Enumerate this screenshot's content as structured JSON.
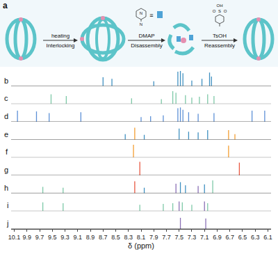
{
  "panel_a": {
    "label": "a",
    "dmap_atoms": [
      "N",
      "N"
    ],
    "equiv": "≡",
    "tsoh_atoms": [
      "OH",
      "O",
      "S",
      "O"
    ],
    "steps": [
      {
        "above": "heating",
        "below": "Interlocking"
      },
      {
        "above": "DMAP",
        "below": "Disassembly"
      },
      {
        "above": "TsOH",
        "below": "Reassembly"
      }
    ]
  },
  "chart_data": {
    "type": "bar",
    "x_label": "δ (ppm)",
    "xlim": [
      10.15,
      6.05
    ],
    "xticks": [
      10.1,
      9.9,
      9.7,
      9.5,
      9.3,
      9.1,
      8.9,
      8.7,
      8.5,
      8.3,
      8.1,
      7.9,
      7.7,
      7.5,
      7.3,
      7.1,
      6.9,
      6.7,
      6.5,
      6.3,
      6.1
    ],
    "ylim": [
      0,
      1
    ],
    "tick_labels": "x",
    "series": [
      {
        "name": "b",
        "color": "#3d8fc0",
        "x": [
          8.7,
          8.56,
          7.9,
          7.52,
          7.48,
          7.44,
          7.3,
          7.14,
          7.02,
          6.99
        ],
        "values": [
          0.55,
          0.45,
          0.3,
          0.9,
          0.95,
          0.8,
          0.35,
          0.45,
          0.85,
          0.6
        ]
      },
      {
        "name": "c",
        "color": "#7cc8a6",
        "x": [
          9.52,
          9.28,
          8.25,
          7.78,
          7.6,
          7.55,
          7.4,
          7.3,
          7.18,
          7.05,
          6.95
        ],
        "values": [
          0.6,
          0.5,
          0.35,
          0.3,
          0.8,
          0.7,
          0.55,
          0.4,
          0.45,
          0.6,
          0.5
        ]
      },
      {
        "name": "d",
        "color": "#5b8fd6",
        "x": [
          10.05,
          9.75,
          9.55,
          9.05,
          8.1,
          7.95,
          7.75,
          7.52,
          7.48,
          7.44,
          7.35,
          7.2,
          6.95,
          6.35,
          6.15
        ],
        "values": [
          0.7,
          0.65,
          0.55,
          0.6,
          0.3,
          0.35,
          0.4,
          0.85,
          0.9,
          0.75,
          0.6,
          0.5,
          0.55,
          0.7,
          0.7
        ]
      },
      {
        "name": "e",
        "colors": [
          "#3d8fc0",
          "#f39c2d",
          "#3d8fc0",
          "#3d8fc0",
          "#3d8fc0",
          "#3d8fc0",
          "#3d8fc0",
          "#f39c2d",
          "#f39c2d"
        ],
        "x": [
          8.35,
          8.2,
          8.05,
          7.5,
          7.35,
          7.2,
          7.05,
          6.72,
          6.62
        ],
        "values": [
          0.35,
          0.75,
          0.3,
          0.7,
          0.5,
          0.45,
          0.6,
          0.6,
          0.35
        ]
      },
      {
        "name": "f",
        "color": "#f39c2d",
        "x": [
          8.22,
          6.72
        ],
        "values": [
          0.8,
          0.75
        ]
      },
      {
        "name": "g",
        "color": "#e8553f",
        "x": [
          8.12,
          6.55
        ],
        "values": [
          0.85,
          0.8
        ]
      },
      {
        "name": "h",
        "colors": [
          "#7cc8a6",
          "#7cc8a6",
          "#e8553f",
          "#3d8fc0",
          "#8a6fb5",
          "#3d8fc0",
          "#3d8fc0",
          "#8a6fb5",
          "#3d8fc0",
          "#7cc8a6"
        ],
        "x": [
          9.65,
          9.33,
          8.2,
          8.05,
          7.55,
          7.48,
          7.4,
          7.2,
          7.1,
          6.97
        ],
        "values": [
          0.4,
          0.35,
          0.75,
          0.35,
          0.6,
          0.7,
          0.5,
          0.45,
          0.55,
          0.8
        ]
      },
      {
        "name": "i",
        "colors": [
          "#7cc8a6",
          "#7cc8a6",
          "#7cc8a6",
          "#7cc8a6",
          "#7cc8a6",
          "#8a6fb5",
          "#7cc8a6",
          "#7cc8a6",
          "#8a6fb5",
          "#7cc8a6"
        ],
        "x": [
          9.65,
          9.33,
          8.12,
          7.75,
          7.6,
          7.5,
          7.45,
          7.3,
          7.1,
          7.05
        ],
        "values": [
          0.55,
          0.5,
          0.4,
          0.45,
          0.5,
          0.6,
          0.55,
          0.4,
          0.6,
          0.5
        ]
      },
      {
        "name": "j",
        "color": "#8a6fb5",
        "x": [
          7.48,
          7.08
        ],
        "values": [
          0.7,
          0.65
        ]
      }
    ]
  }
}
